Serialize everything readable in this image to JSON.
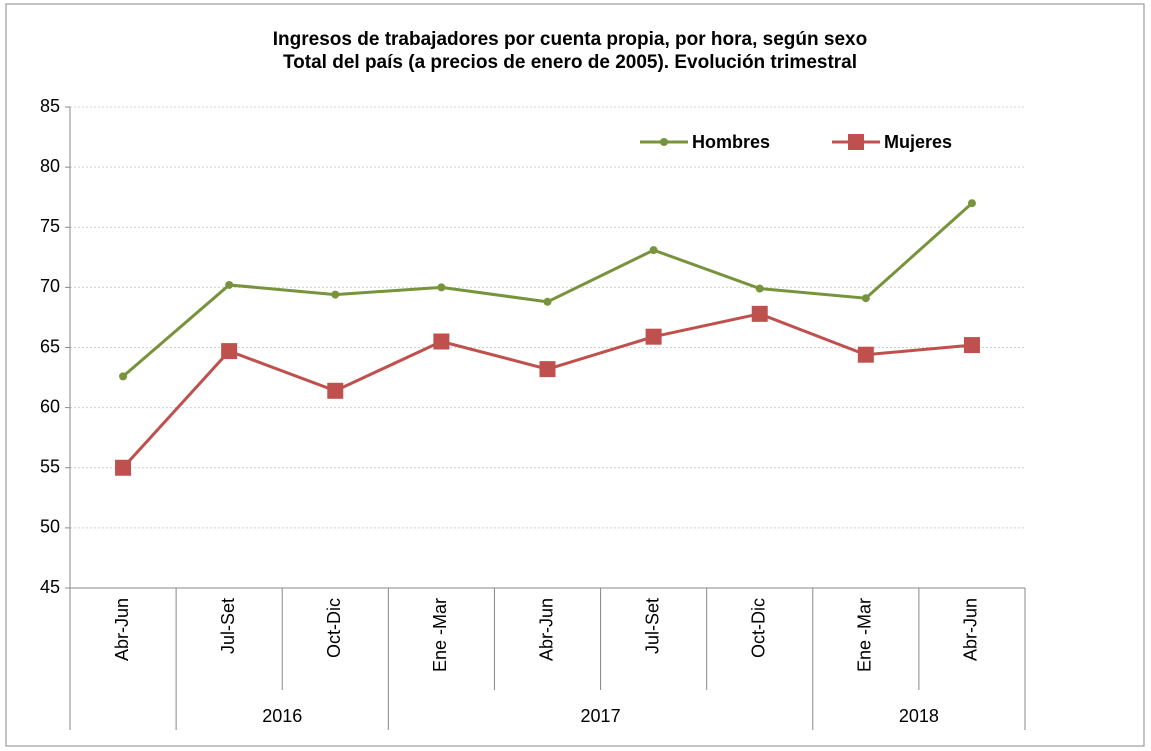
{
  "chart_data": {
    "type": "line",
    "title": "Ingresos de trabajadores por cuenta propia, por hora, según sexo",
    "subtitle": "Total del país (a precios de enero de 2005). Evolución trimestral",
    "categories": [
      "Abr-Jun",
      "Jul-Set",
      "Oct-Dic",
      "Ene -Mar",
      "Abr-Jun",
      "Jul-Set",
      "Oct-Dic",
      "Ene -Mar",
      "Abr-Jun"
    ],
    "years": [
      null,
      "2016",
      "2016",
      "2017",
      "2017",
      "2017",
      "2017",
      "2018",
      "2018"
    ],
    "series": [
      {
        "name": "Hombres",
        "color": "#77933c",
        "marker": "circle",
        "values": [
          62.6,
          70.2,
          69.4,
          70.0,
          68.8,
          73.1,
          69.9,
          69.1,
          77.0
        ]
      },
      {
        "name": "Mujeres",
        "color": "#c0504d",
        "marker": "square",
        "values": [
          55.0,
          64.7,
          61.4,
          65.5,
          63.2,
          65.9,
          67.8,
          64.4,
          65.2
        ]
      }
    ],
    "ylim": [
      45,
      85
    ],
    "yticks": [
      45,
      50,
      55,
      60,
      65,
      70,
      75,
      80,
      85
    ],
    "grid": true,
    "legend": "top-right"
  }
}
